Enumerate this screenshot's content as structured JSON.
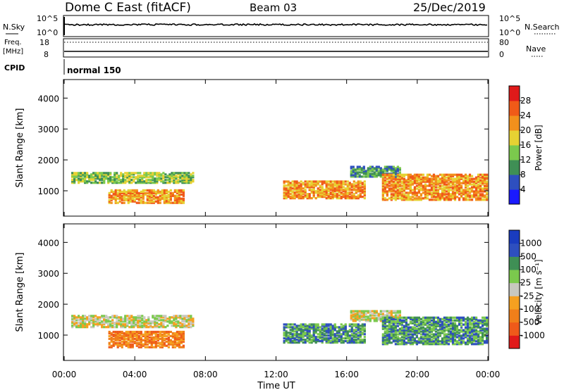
{
  "header": {
    "station": "Dome C East (fitACF)",
    "beam": "Beam 03",
    "date": "25/Dec/2019"
  },
  "nsky_panel": {
    "label": "N.Sky",
    "left_top": "10^5",
    "left_bottom": "10^0",
    "right_label": "N.Search",
    "right_top": "10^5",
    "right_bottom": "10^0"
  },
  "freq_panel": {
    "label_line1": "Freq.",
    "label_line2": "[MHz]",
    "left_top": "18",
    "left_bottom": "8",
    "right_label": "Nave",
    "right_top": "80",
    "right_bottom": "0"
  },
  "cpid": {
    "label": "CPID",
    "value": "normal 150"
  },
  "colors": {
    "power": [
      "#1a1aff",
      "#2e4fbf",
      "#3f8f55",
      "#7bc94d",
      "#e6d233",
      "#f2901c",
      "#f05a18",
      "#e01a1a"
    ],
    "velocity": [
      "#e01a1a",
      "#ef5a1a",
      "#f07f1a",
      "#f5a020",
      "#c8c8c0",
      "#7bc94d",
      "#3f8f55",
      "#2e4fbf",
      "#1a3cbf"
    ]
  },
  "chart_data": [
    {
      "type": "heatmap",
      "name": "power",
      "xlabel": "",
      "ylabel": "Slant Range [km]",
      "yticks": [
        1000,
        2000,
        3000,
        4000
      ],
      "ylim": [
        180,
        4600
      ],
      "colorbar_label": "Power [dB]",
      "colorbar_ticks": [
        "4",
        "8",
        "12",
        "16",
        "20",
        "24",
        "28"
      ],
      "echo_regions_hours": [
        {
          "t0": 0.4,
          "t1": 7.3,
          "r0": 1250,
          "r1": 1600,
          "level": 3
        },
        {
          "t0": 2.5,
          "t1": 6.8,
          "r0": 600,
          "r1": 1050,
          "level": 5
        },
        {
          "t0": 12.4,
          "t1": 17.0,
          "r0": 750,
          "r1": 1300,
          "level": 5
        },
        {
          "t0": 16.2,
          "t1": 19.0,
          "r0": 1450,
          "r1": 1800,
          "level": 2
        },
        {
          "t0": 18.0,
          "t1": 23.9,
          "r0": 700,
          "r1": 1550,
          "level": 5
        }
      ]
    },
    {
      "type": "heatmap",
      "name": "velocity",
      "xlabel": "Time UT",
      "ylabel": "Slant Range [km]",
      "yticks": [
        1000,
        2000,
        3000,
        4000
      ],
      "ylim": [
        180,
        4600
      ],
      "colorbar_label": "Velocity [m s⁻¹]",
      "colorbar_ticks": [
        "-1000",
        "-500",
        "-100",
        "-25",
        "25",
        "100",
        "500",
        "1000"
      ],
      "xticks": [
        "00:00",
        "04:00",
        "08:00",
        "12:00",
        "16:00",
        "20:00",
        "00:00"
      ],
      "echo_regions_hours": [
        {
          "t0": 0.4,
          "t1": 7.3,
          "r0": 1250,
          "r1": 1650,
          "level": 4
        },
        {
          "t0": 2.5,
          "t1": 6.8,
          "r0": 600,
          "r1": 1100,
          "level": 2
        },
        {
          "t0": 12.4,
          "t1": 17.0,
          "r0": 750,
          "r1": 1350,
          "level": 6
        },
        {
          "t0": 16.2,
          "t1": 19.0,
          "r0": 1450,
          "r1": 1800,
          "level": 4
        },
        {
          "t0": 18.0,
          "t1": 23.9,
          "r0": 700,
          "r1": 1600,
          "level": 6
        }
      ]
    }
  ]
}
